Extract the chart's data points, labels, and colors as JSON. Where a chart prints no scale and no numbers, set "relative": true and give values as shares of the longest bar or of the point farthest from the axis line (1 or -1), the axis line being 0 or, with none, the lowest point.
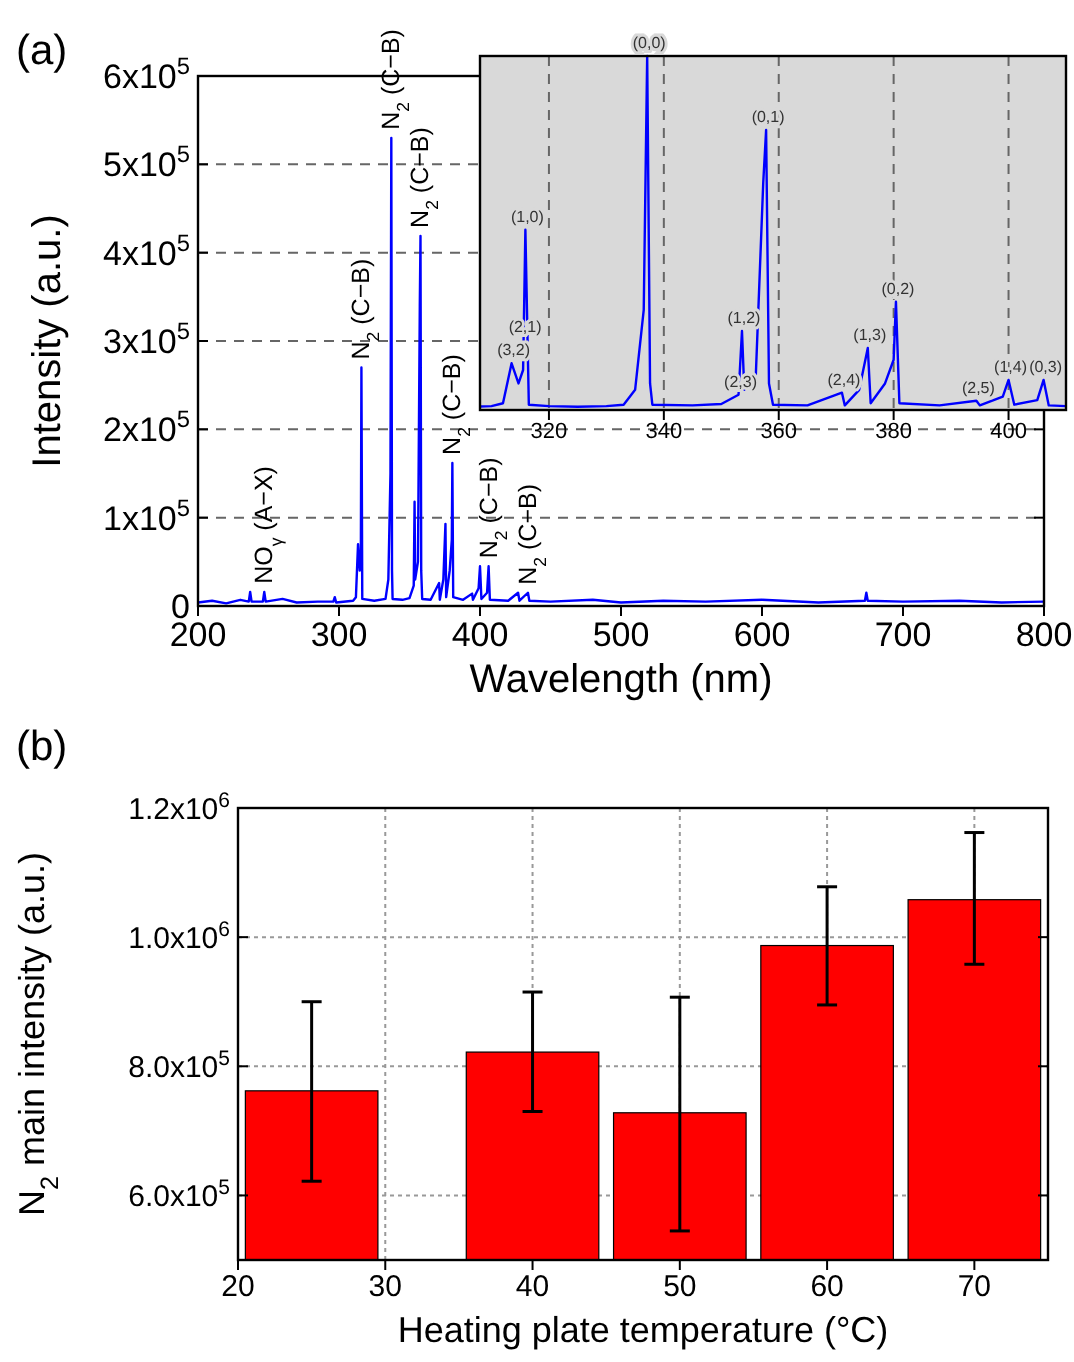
{
  "chart_data": [
    {
      "type": "line",
      "title": "(a)",
      "xlabel": "Wavelength (nm)",
      "ylabel": "Intensity (a.u.)",
      "xlim": [
        200,
        800
      ],
      "ylim": [
        0,
        600000
      ],
      "xticks": [
        200,
        300,
        400,
        500,
        600,
        700,
        800
      ],
      "yticks": [
        0,
        {
          "value": 100000,
          "label": "1x10$^{5}$"
        },
        {
          "value": 200000,
          "label": "2x10$^{5}$"
        },
        {
          "value": 300000,
          "label": "3x10$^{5}$"
        },
        {
          "value": 400000,
          "label": "4x10$^{5}$"
        },
        {
          "value": 500000,
          "label": "5x10$^{5}$"
        },
        {
          "value": 600000,
          "label": "6x10$^{5}$"
        }
      ],
      "grid": "y",
      "series": [
        {
          "color": "#0000ff",
          "x": [
            200,
            210,
            220,
            230,
            236,
            237,
            238,
            246,
            247,
            248,
            260,
            270,
            285,
            296,
            297,
            298,
            310,
            312,
            313.5,
            314.7,
            315.5,
            315.9,
            316.5,
            325,
            333,
            335,
            336.5,
            337.1,
            337.6,
            338,
            345,
            350,
            353,
            353.6,
            354,
            356,
            357.3,
            357.8,
            358.3,
            359,
            365,
            371,
            371.5,
            374,
            375.5,
            376,
            378.5,
            380,
            380.4,
            381,
            388,
            394.4,
            395,
            399,
            400,
            401,
            405,
            406.1,
            407,
            420,
            427,
            428,
            434,
            435,
            450,
            480,
            500,
            530,
            560,
            600,
            640,
            673,
            674,
            675,
            700,
            740,
            770,
            800
          ],
          "values": [
            4000,
            6000,
            3000,
            7000,
            5000,
            16000,
            5000,
            5000,
            16000,
            5000,
            8000,
            4000,
            5000,
            5000,
            10000,
            4000,
            6000,
            10000,
            70000,
            40000,
            60000,
            270000,
            8000,
            6000,
            8000,
            30000,
            150000,
            530000,
            40000,
            8000,
            7000,
            9000,
            23000,
            118000,
            30000,
            50000,
            340000,
            419000,
            40000,
            8000,
            7000,
            26000,
            7000,
            30000,
            93000,
            10000,
            40000,
            75000,
            162000,
            10000,
            7000,
            14000,
            7000,
            20000,
            45000,
            8000,
            15000,
            45000,
            7000,
            6000,
            15000,
            6000,
            15000,
            6000,
            5000,
            7000,
            4000,
            6000,
            5000,
            7000,
            4000,
            6000,
            15000,
            6000,
            5000,
            6000,
            4000,
            5000
          ]
        }
      ],
      "annotations": [
        {
          "text": "NO$_{γ}$ (A−X)",
          "x": 247,
          "y": 16000
        },
        {
          "text": "N$_{2}$ (C−B)",
          "x": 315.9,
          "y": 270000
        },
        {
          "text": "N$_{2}$ (C−B)",
          "x": 337.1,
          "y": 530000
        },
        {
          "text": "N$_{2}$ (C−B)",
          "x": 357.8,
          "y": 419000
        },
        {
          "text": "N$_{2}$ (C−B)",
          "x": 380.4,
          "y": 162000
        },
        {
          "text": "N$_{2}$ (C−B)",
          "x": 406.1,
          "y": 45000
        },
        {
          "text": "N$_{2}$ (C−B)",
          "x": 434,
          "y": 15000
        }
      ]
    },
    {
      "type": "line",
      "relative": true,
      "xlim": [
        308,
        410
      ],
      "xticks": [
        320,
        340,
        360,
        380,
        400
      ],
      "grid": "x",
      "series": [
        {
          "color": "#0000ff",
          "x": [
            308,
            310,
            312,
            313.5,
            314.7,
            315.5,
            315.9,
            316.5,
            320,
            325,
            330,
            333,
            335,
            336.5,
            337.1,
            337.6,
            338,
            345,
            350,
            353,
            353.6,
            354,
            356,
            357.3,
            357.8,
            358.3,
            359,
            365,
            371,
            371.5,
            374,
            375.5,
            376,
            378.5,
            380,
            380.4,
            381,
            388,
            394.4,
            395,
            399,
            400,
            401,
            405,
            406.1,
            407,
            410
          ],
          "values": [
            0.01,
            0.011,
            0.019,
            0.132,
            0.075,
            0.113,
            0.509,
            0.015,
            0.011,
            0.009,
            0.011,
            0.015,
            0.057,
            0.283,
            1,
            0.075,
            0.015,
            0.013,
            0.017,
            0.043,
            0.223,
            0.057,
            0.094,
            0.642,
            0.791,
            0.075,
            0.015,
            0.013,
            0.049,
            0.013,
            0.057,
            0.175,
            0.019,
            0.075,
            0.142,
            0.306,
            0.019,
            0.013,
            0.026,
            0.013,
            0.038,
            0.085,
            0.015,
            0.028,
            0.085,
            0.013,
            0.011
          ]
        }
      ],
      "annotations": [
        {
          "text": "(3,2)",
          "x": 313.5,
          "y": 0.132
        },
        {
          "text": "(2,1)",
          "x": 315.5,
          "y": 0.113
        },
        {
          "text": "(1,0)",
          "x": 315.9,
          "y": 0.509
        },
        {
          "text": "(0,0)",
          "x": 337.1,
          "y": 1
        },
        {
          "text": "(2,3)",
          "x": 353,
          "y": 0.043
        },
        {
          "text": "(1,2)",
          "x": 353.6,
          "y": 0.223
        },
        {
          "text": "(0,1)",
          "x": 357.8,
          "y": 0.791
        },
        {
          "text": "(2,4)",
          "x": 371,
          "y": 0.049
        },
        {
          "text": "(1,3)",
          "x": 375.5,
          "y": 0.175
        },
        {
          "text": "(0,2)",
          "x": 380.4,
          "y": 0.306
        },
        {
          "text": "(2,5)",
          "x": 394.4,
          "y": 0.026
        },
        {
          "text": "(1,4)",
          "x": 400,
          "y": 0.085
        },
        {
          "text": "(0,3)",
          "x": 406.1,
          "y": 0.085
        }
      ]
    },
    {
      "type": "bar",
      "title": "(b)",
      "xlabel": "Heating plate temperature (°C)",
      "ylabel": "N$_{2}$ main intensity (a.u.)",
      "xlim": [
        20,
        75
      ],
      "ylim": [
        500000,
        1200000
      ],
      "xticks": [
        20,
        30,
        40,
        50,
        60,
        70
      ],
      "yticks": [
        {
          "value": 600000,
          "label": "6.0x10$^{5}$"
        },
        {
          "value": 800000,
          "label": "8.0x10$^{5}$"
        },
        {
          "value": 1000000,
          "label": "1.0x10$^{6}$"
        },
        {
          "value": 1200000,
          "label": "1.2x10$^{6}$"
        }
      ],
      "grid": true,
      "x": [
        25,
        40,
        50,
        60,
        70
      ],
      "values": [
        762000,
        822000,
        728000,
        987000,
        1058000
      ],
      "color": "#ff0000",
      "errors": [
        [
          622000,
          900000
        ],
        [
          730000,
          915000
        ],
        [
          545000,
          907000
        ],
        [
          895000,
          1078000
        ],
        [
          958000,
          1162000
        ]
      ]
    }
  ]
}
